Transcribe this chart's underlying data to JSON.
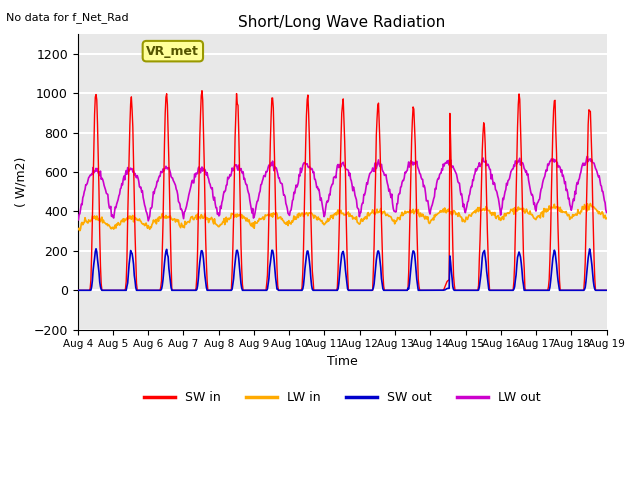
{
  "title": "Short/Long Wave Radiation",
  "xlabel": "Time",
  "ylabel": "( W/m2)",
  "note": "No data for f_Net_Rad",
  "legend_label": "VR_met",
  "ylim": [
    -200,
    1300
  ],
  "yticks": [
    -200,
    0,
    200,
    400,
    600,
    800,
    1000,
    1200
  ],
  "x_tick_labels": [
    "Aug 4",
    "Aug 5",
    "Aug 6",
    "Aug 7",
    "Aug 8",
    "Aug 9",
    "Aug 10",
    "Aug 11",
    "Aug 12",
    "Aug 13",
    "Aug 14",
    "Aug 15",
    "Aug 16",
    "Aug 17",
    "Aug 18",
    "Aug 19"
  ],
  "colors": {
    "SW_in": "#ff0000",
    "LW_in": "#ffaa00",
    "SW_out": "#0000cc",
    "LW_out": "#cc00cc"
  },
  "legend_items": [
    "SW in",
    "LW in",
    "SW out",
    "LW out"
  ],
  "legend_colors": [
    "#ff0000",
    "#ffaa00",
    "#0000cc",
    "#cc00cc"
  ],
  "background_color": "#e8e8e8",
  "grid_color": "#ffffff",
  "fig_color": "#ffffff",
  "n_days": 15,
  "peak_heights": [
    1000,
    980,
    1000,
    1010,
    990,
    980,
    970,
    960,
    950,
    930,
    1020,
    840,
    980,
    960,
    940
  ]
}
